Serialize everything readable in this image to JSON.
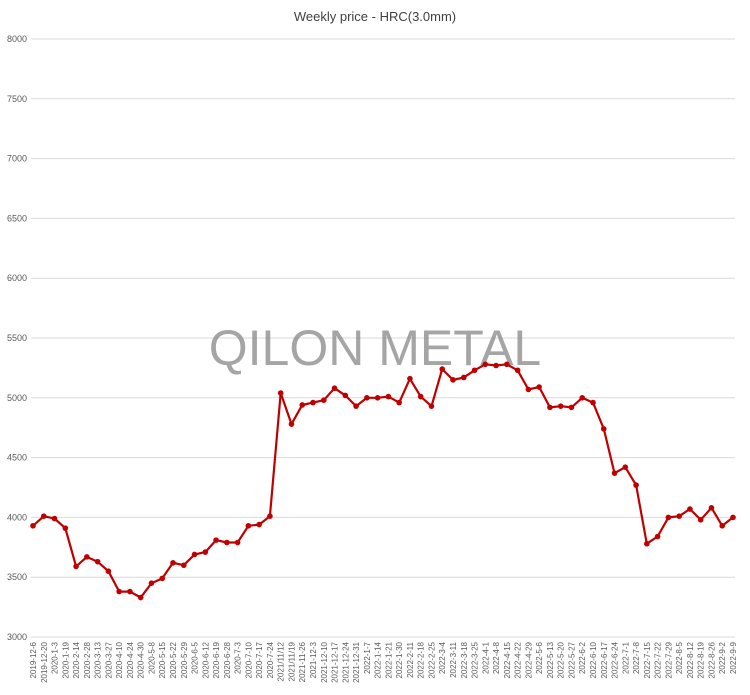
{
  "watermark": "QILON METAL",
  "chart_data": {
    "type": "line",
    "title": "Weekly price - HRC(3.0mm)",
    "xlabel": "",
    "ylabel": "",
    "ylim": [
      3000,
      8000
    ],
    "yticks": [
      3000,
      3500,
      4000,
      4500,
      5000,
      5500,
      6000,
      6500,
      7000,
      7500,
      8000
    ],
    "grid": true,
    "legend": "none",
    "x": [
      "2019-12-6",
      "2019-12-20",
      "2020-1-3",
      "2020-1-19",
      "2020-2-14",
      "2020-2-28",
      "2020-3-13",
      "2020-3-27",
      "2020-4-10",
      "2020-4-24",
      "2020-4-30",
      "2020-5-8",
      "2020-5-15",
      "2020-5-22",
      "2020-5-29",
      "2020-6-5",
      "2020-6-12",
      "2020-6-19",
      "2020-6-28",
      "2020-7-3",
      "2020-7-10",
      "2020-7-17",
      "2020-7-24",
      "2021/11/12",
      "2021/11/19",
      "2021-11-26",
      "2021-12-3",
      "2021-12-10",
      "2021-12-17",
      "2021-12-24",
      "2021-12-31",
      "2022-1-7",
      "2022-1-14",
      "2022-1-21",
      "2022-1-30",
      "2022-2-11",
      "2022-2-18",
      "2022-2-25",
      "2022-3-4",
      "2022-3-11",
      "2022-3-18",
      "2022-3-25",
      "2022-4-1",
      "2022-4-8",
      "2022-4-15",
      "2022-4-22",
      "2022-4-29",
      "2022-5-6",
      "2022-5-13",
      "2022-5-20",
      "2022-5-27",
      "2022-6-2",
      "2022-6-10",
      "2022-6-17",
      "2022-6-24",
      "2022-7-1",
      "2022-7-8",
      "2022-7-15",
      "2022-7-22",
      "2022-7-29",
      "2022-8-5",
      "2022-8-12",
      "2022-8-19",
      "2022-8-26",
      "2022-9-2",
      "2022-9-9"
    ],
    "series": [
      {
        "color": "#c00000",
        "values": [
          3930,
          4010,
          3990,
          3910,
          3590,
          3670,
          3630,
          3550,
          3380,
          3380,
          3330,
          3450,
          3490,
          3620,
          3600,
          3690,
          3710,
          3810,
          3790,
          3790,
          3930,
          3940,
          4010,
          5040,
          4780,
          4940,
          4960,
          4980,
          5080,
          5020,
          4930,
          5000,
          5000,
          5010,
          4960,
          5160,
          5010,
          4930,
          5240,
          5150,
          5170,
          5230,
          5280,
          5270,
          5280,
          5230,
          5070,
          5090,
          4920,
          4930,
          4920,
          5000,
          4960,
          4740,
          4370,
          4420,
          4270,
          3780,
          3840,
          4000,
          4010,
          4070,
          3980,
          4080,
          3930,
          4000
        ]
      }
    ]
  }
}
